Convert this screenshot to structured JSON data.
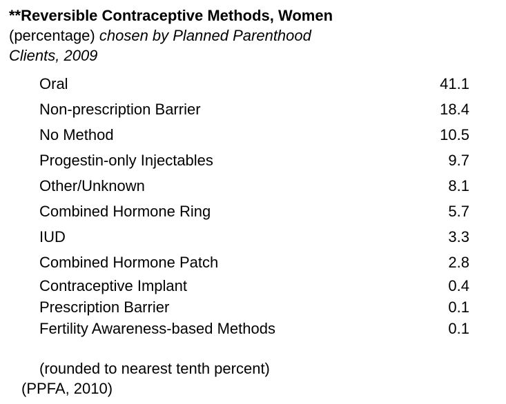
{
  "title": {
    "line1": "**Reversible Contraceptive Methods, Women",
    "line2_regular": "(percentage) ",
    "line2_italic": "chosen by Planned Parenthood",
    "line3_italic": "Clients, 2009"
  },
  "rows": [
    {
      "label": "Oral",
      "value": "41.1"
    },
    {
      "label": "Non-prescription Barrier",
      "value": "18.4"
    },
    {
      "label": "No Method",
      "value": "10.5"
    },
    {
      "label": "Progestin-only Injectables",
      "value": "9.7"
    },
    {
      "label": "Other/Unknown",
      "value": "8.1"
    },
    {
      "label": "Combined Hormone Ring",
      "value": "5.7"
    },
    {
      "label": "IUD",
      "value": "3.3"
    },
    {
      "label": "Combined Hormone Patch",
      "value": "2.8"
    },
    {
      "label": "Contraceptive Implant",
      "value": "0.4"
    },
    {
      "label": "Prescription Barrier",
      "value": "0.1"
    },
    {
      "label": "Fertility Awareness-based Methods",
      "value": "0.1"
    }
  ],
  "footer": {
    "line1": "(rounded to nearest tenth percent)",
    "line2": "(PPFA, 2010)"
  },
  "colors": {
    "text": "#000000",
    "background": "#ffffff"
  },
  "chart_data": {
    "type": "table",
    "title": "**Reversible Contraceptive Methods, Women (percentage) chosen by Planned Parenthood Clients, 2009",
    "categories": [
      "Oral",
      "Non-prescription Barrier",
      "No Method",
      "Progestin-only Injectables",
      "Other/Unknown",
      "Combined Hormone Ring",
      "IUD",
      "Combined Hormone Patch",
      "Contraceptive Implant",
      "Prescription Barrier",
      "Fertility Awareness-based Methods"
    ],
    "values": [
      41.1,
      18.4,
      10.5,
      9.7,
      8.1,
      5.7,
      3.3,
      2.8,
      0.4,
      0.1,
      0.1
    ],
    "notes": [
      "(rounded to nearest tenth percent)",
      "(PPFA, 2010)"
    ]
  }
}
